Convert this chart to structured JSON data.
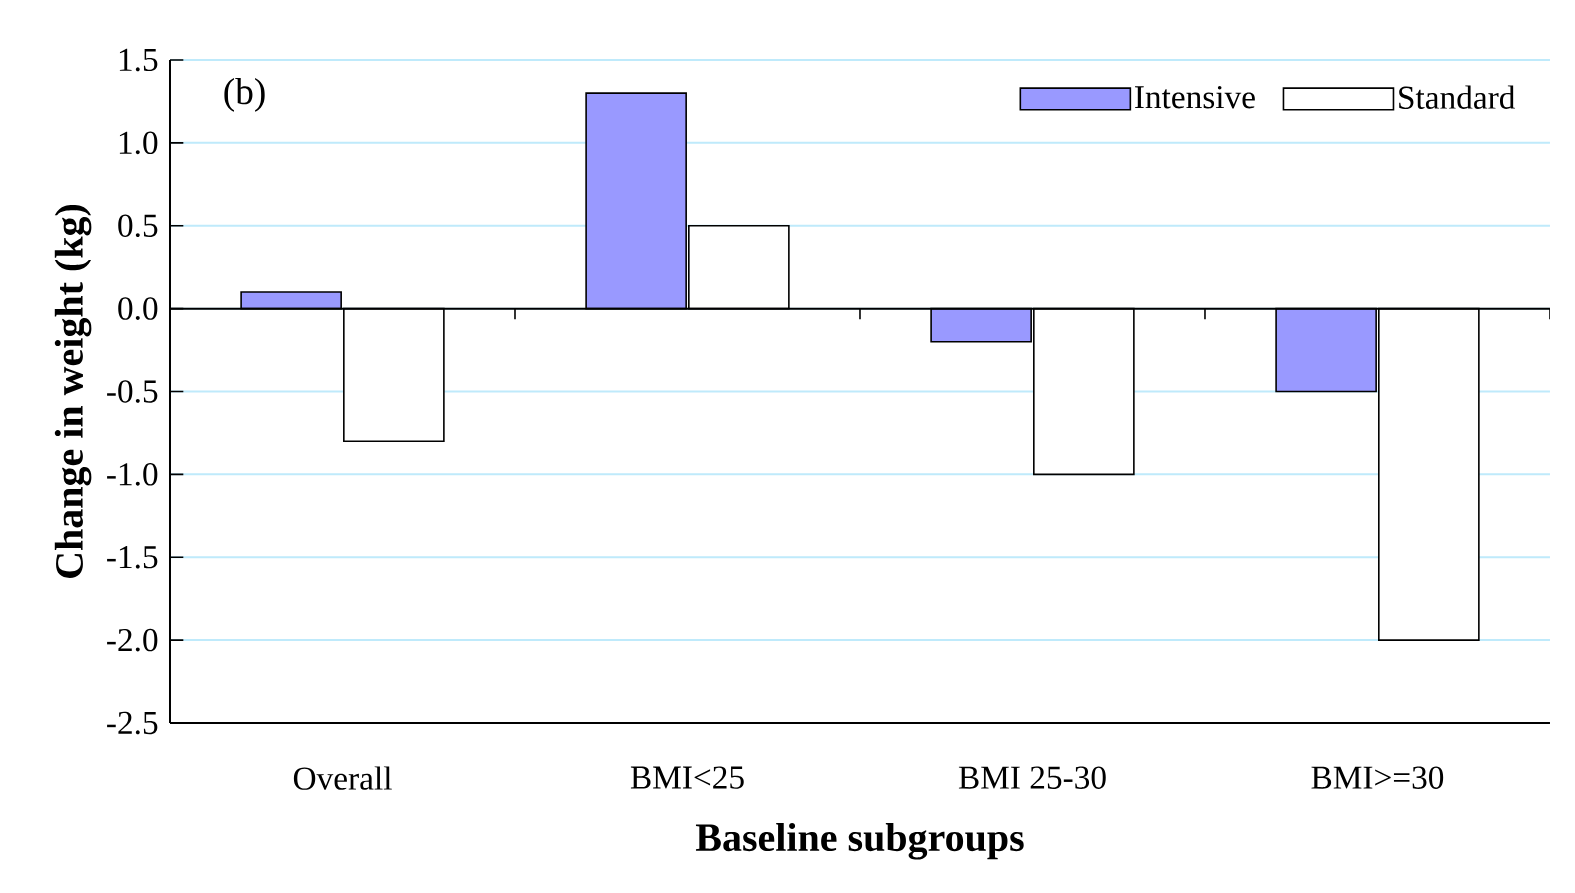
{
  "chart_data": {
    "type": "bar",
    "xlabel": "Baseline subgroups",
    "ylabel": "Change in weight  (kg)",
    "categories": [
      "Overall",
      "BMI<25",
      "BMI 25-30",
      "BMI>=30"
    ],
    "series": [
      {
        "name": "Intensive",
        "color": "#9999ff",
        "values": [
          0.1,
          1.3,
          -0.2,
          -0.5
        ]
      },
      {
        "name": "Standard",
        "color": "#ffffff",
        "values": [
          -0.8,
          0.5,
          -1.0,
          -2.0
        ]
      }
    ],
    "ylim": [
      -2.5,
      1.5
    ],
    "yticks": [
      {
        "value": -2.5,
        "label": "-2.5"
      },
      {
        "value": -2.0,
        "label": "-2.0"
      },
      {
        "value": -1.5,
        "label": "-1.5"
      },
      {
        "value": -1.0,
        "label": "-1.0"
      },
      {
        "value": -0.5,
        "label": "-0.5"
      },
      {
        "value": 0,
        "label": "0.0"
      },
      {
        "value": 0.5,
        "label": "0.5"
      },
      {
        "value": 1.0,
        "label": "1.0"
      },
      {
        "value": 1.5,
        "label": "1.5"
      }
    ],
    "grid": "y",
    "legend": "top right",
    "annotations": [
      "(b)"
    ]
  }
}
